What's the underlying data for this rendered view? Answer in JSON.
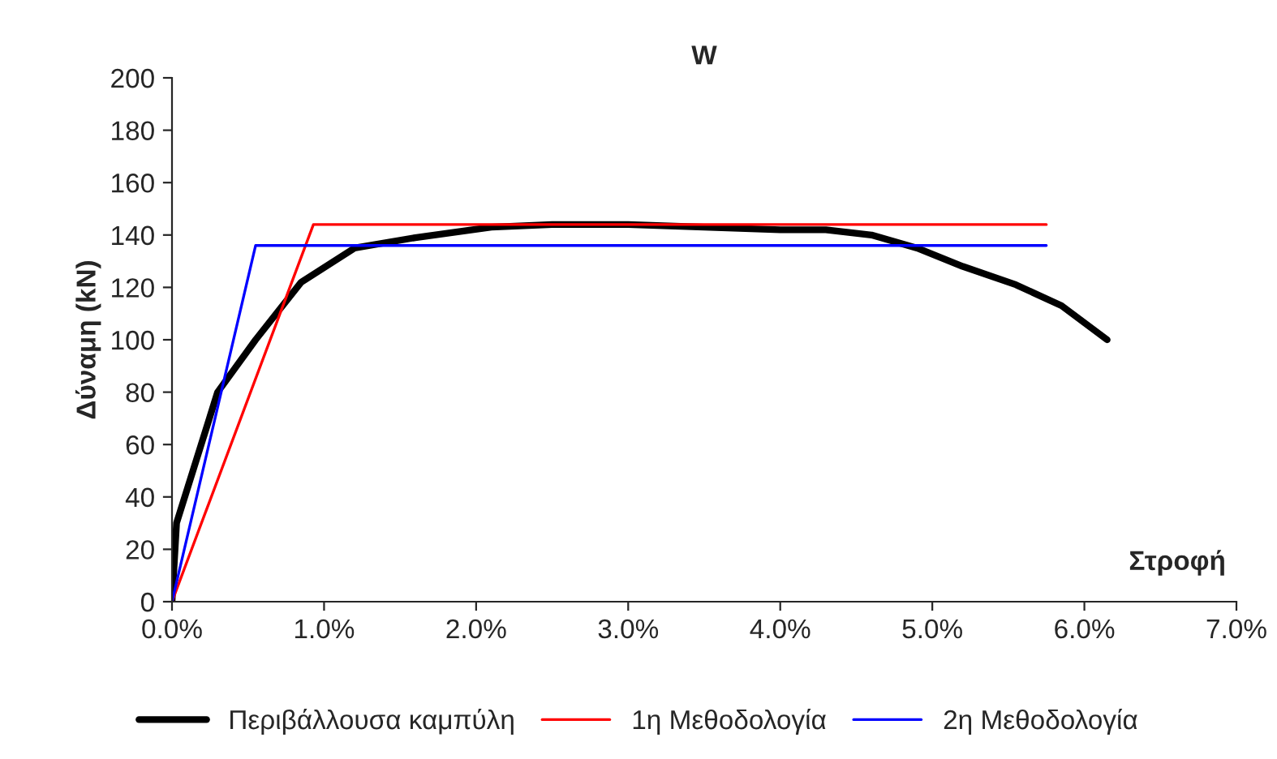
{
  "chart_data": {
    "type": "line",
    "title": "W",
    "xlabel": "Στροφή",
    "ylabel": "Δύναμη (kN)",
    "xlim": [
      0,
      7
    ],
    "xticks": [
      {
        "value": 0,
        "label": "0.0%"
      },
      {
        "value": 1,
        "label": "1.0%"
      },
      {
        "value": 2,
        "label": "2.0%"
      },
      {
        "value": 3,
        "label": "3.0%"
      },
      {
        "value": 4,
        "label": "4.0%"
      },
      {
        "value": 5,
        "label": "5.0%"
      },
      {
        "value": 6,
        "label": "6.0%"
      },
      {
        "value": 7,
        "label": "7.0%"
      }
    ],
    "ylim": [
      0,
      200
    ],
    "yticks": [
      0,
      20,
      40,
      60,
      80,
      100,
      120,
      140,
      160,
      180,
      200
    ],
    "grid": false,
    "legend": "bottom",
    "marker": "none",
    "series": [
      {
        "name": "Περιβάλλουσα καμπύλη",
        "color": "#000000",
        "x": [
          0,
          0.03,
          0.3,
          0.55,
          0.85,
          1.2,
          1.6,
          2.1,
          2.5,
          3.0,
          3.5,
          4.0,
          4.3,
          4.6,
          4.9,
          5.2,
          5.55,
          5.85,
          6.15
        ],
        "values": [
          0,
          30,
          80,
          100,
          122,
          135,
          139,
          143,
          144,
          144,
          143,
          142,
          142,
          140,
          135,
          128,
          121,
          113,
          100
        ]
      },
      {
        "name": "1η Μεθοδολογία",
        "color": "#ff0000",
        "x": [
          0,
          0.93,
          5.75
        ],
        "values": [
          0,
          144,
          144
        ]
      },
      {
        "name": "2η Μεθοδολογία",
        "color": "#0000ff",
        "x": [
          0,
          0.55,
          5.75
        ],
        "values": [
          0,
          136,
          136
        ]
      }
    ]
  }
}
